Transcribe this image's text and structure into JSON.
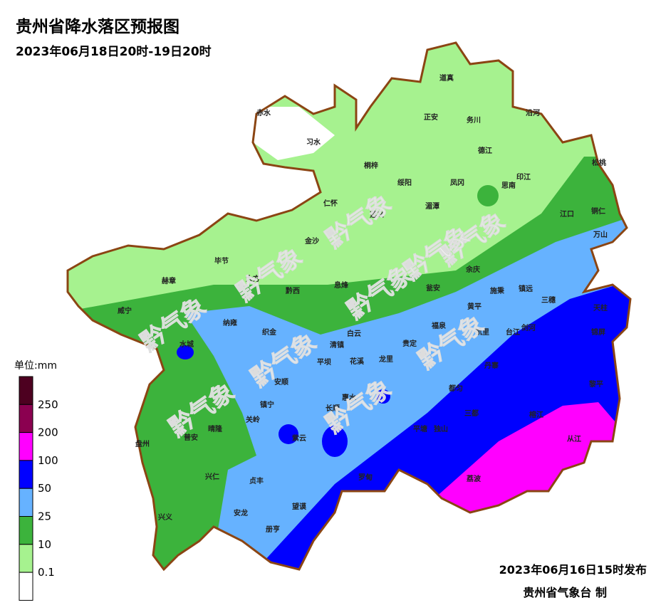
{
  "header": {
    "title": "贵州省降水落区预报图",
    "subtitle": "2023年06月18日20时-19日20时"
  },
  "legend": {
    "unit": "单位:mm",
    "labels": [
      250,
      200,
      100,
      50,
      25,
      10,
      0.1
    ]
  },
  "footer": {
    "issued": "2023年06月16日15时发布",
    "producer": "贵州省气象台 制"
  },
  "watermark": "黔气象",
  "places": [
    "赤水",
    "习水",
    "道真",
    "正安",
    "务川",
    "沿河",
    "德江",
    "桐梓",
    "绥阳",
    "凤冈",
    "思南",
    "印江",
    "松桃",
    "湄潭",
    "江口",
    "铜仁",
    "仁怀",
    "遵义",
    "金沙",
    "毕节",
    "赫章",
    "大方",
    "黔西",
    "息烽",
    "余庆",
    "瓮安",
    "万山",
    "施秉",
    "镇远",
    "三穗",
    "黄平",
    "天柱",
    "锦屏",
    "威宁",
    "纳雍",
    "织金",
    "福泉",
    "凯里",
    "台江",
    "剑河",
    "清镇",
    "白云",
    "贵定",
    "龙里",
    "丹寨",
    "黎平",
    "花溪",
    "平坝",
    "安顺",
    "水城",
    "镇宁",
    "关岭",
    "晴隆",
    "普安",
    "盘州",
    "惠水",
    "长顺",
    "紫云",
    "都匀",
    "三都",
    "独山",
    "平塘",
    "榕江",
    "从江",
    "荔波",
    "罗甸",
    "兴仁",
    "贞丰",
    "安龙",
    "册亨",
    "望谟",
    "兴义"
  ]
}
